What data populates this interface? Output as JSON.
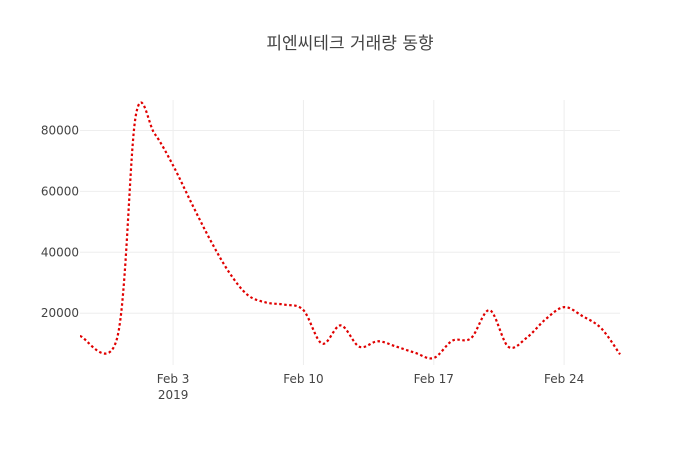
{
  "chart_data": {
    "type": "line",
    "title": "피엔씨테크 거래량 동향",
    "xlabel": "",
    "ylabel": "",
    "x_ticks": [
      {
        "date": "2019-02-03",
        "label": "Feb 3",
        "sublabel": "2019"
      },
      {
        "date": "2019-02-10",
        "label": "Feb 10"
      },
      {
        "date": "2019-02-17",
        "label": "Feb 17"
      },
      {
        "date": "2019-02-24",
        "label": "Feb 24"
      }
    ],
    "y_ticks": [
      20000,
      40000,
      60000,
      80000
    ],
    "y_tick_labels": [
      "20000",
      "40000",
      "60000",
      "80000"
    ],
    "xlim": [
      "2019-01-29",
      "2019-02-27"
    ],
    "ylim": [
      3000,
      90000
    ],
    "grid": true,
    "legend": "none",
    "series": [
      {
        "color": "#e00000",
        "style": "dotted",
        "smooth": true,
        "x": [
          "2019-01-29",
          "2019-01-31",
          "2019-02-01",
          "2019-02-02",
          "2019-02-03",
          "2019-02-04",
          "2019-02-05",
          "2019-02-06",
          "2019-02-07",
          "2019-02-08",
          "2019-02-09",
          "2019-02-10",
          "2019-02-11",
          "2019-02-12",
          "2019-02-13",
          "2019-02-14",
          "2019-02-15",
          "2019-02-16",
          "2019-02-17",
          "2019-02-18",
          "2019-02-19",
          "2019-02-20",
          "2019-02-21",
          "2019-02-22",
          "2019-02-23",
          "2019-02-24",
          "2019-02-25",
          "2019-02-26",
          "2019-02-27"
        ],
        "y": [
          12500,
          12000,
          85000,
          79000,
          68500,
          56000,
          44000,
          33500,
          26000,
          23500,
          22800,
          21000,
          10000,
          16000,
          9000,
          10800,
          9000,
          7000,
          5300,
          11000,
          11800,
          21000,
          9000,
          12000,
          18000,
          22000,
          19000,
          15000,
          6500
        ]
      }
    ]
  }
}
